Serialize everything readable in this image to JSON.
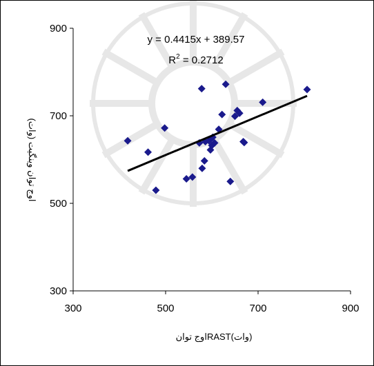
{
  "chart_data": {
    "type": "scatter",
    "title": "",
    "xlabel": "(وات)RASTاوج توان",
    "ylabel": "اوج توان وینگیت (وات)",
    "xlim": [
      300,
      900
    ],
    "ylim": [
      300,
      900
    ],
    "x_ticks": [
      "300",
      "500",
      "700",
      "900"
    ],
    "y_ticks": [
      "300",
      "500",
      "700",
      "900"
    ],
    "grid": false,
    "legend": "none",
    "marker_color": "#1a1a8c",
    "trendline_color": "#000000",
    "trendline": {
      "slope": 0.4415,
      "intercept": 389.57,
      "x_range": [
        418,
        806
      ],
      "equation": "y = 0.4415x + 389.57",
      "r_squared_prefix": "R",
      "r_squared_exp": "2",
      "r_squared_value": " = 0.2712"
    },
    "series": [
      {
        "points": [
          {
            "x": 418,
            "y": 643
          },
          {
            "x": 462,
            "y": 617
          },
          {
            "x": 479,
            "y": 530
          },
          {
            "x": 498,
            "y": 672
          },
          {
            "x": 545,
            "y": 556
          },
          {
            "x": 558,
            "y": 560
          },
          {
            "x": 573,
            "y": 638
          },
          {
            "x": 578,
            "y": 762
          },
          {
            "x": 579,
            "y": 580
          },
          {
            "x": 584,
            "y": 597
          },
          {
            "x": 586,
            "y": 641
          },
          {
            "x": 594,
            "y": 643
          },
          {
            "x": 597,
            "y": 622
          },
          {
            "x": 600,
            "y": 632
          },
          {
            "x": 602,
            "y": 651
          },
          {
            "x": 606,
            "y": 638
          },
          {
            "x": 615,
            "y": 669
          },
          {
            "x": 622,
            "y": 703
          },
          {
            "x": 630,
            "y": 772
          },
          {
            "x": 640,
            "y": 550
          },
          {
            "x": 650,
            "y": 699
          },
          {
            "x": 655,
            "y": 712
          },
          {
            "x": 660,
            "y": 706
          },
          {
            "x": 668,
            "y": 641
          },
          {
            "x": 670,
            "y": 639
          },
          {
            "x": 710,
            "y": 731
          },
          {
            "x": 806,
            "y": 760
          }
        ]
      }
    ]
  }
}
